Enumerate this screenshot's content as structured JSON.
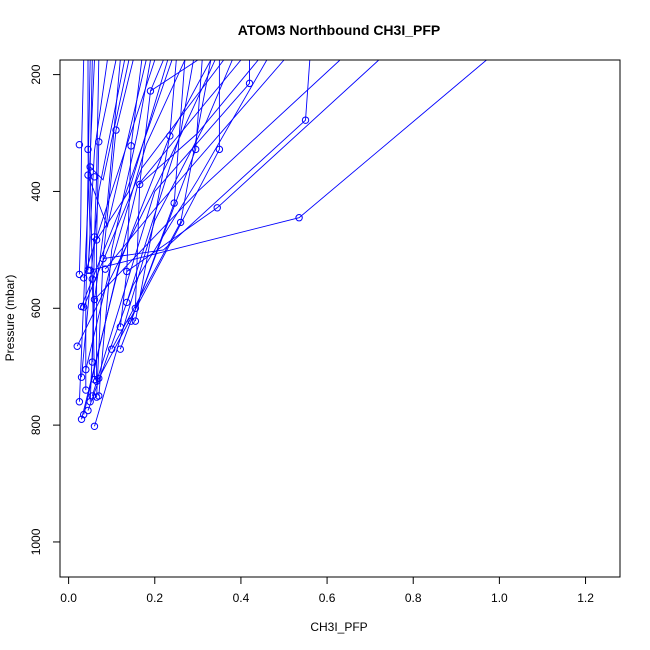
{
  "chart_data": {
    "type": "scatter",
    "title": "ATOM3 Northbound CH3I_PFP",
    "xlabel": "CH3I_PFP",
    "ylabel": "Pressure (mbar)",
    "xlim": [
      -0.02,
      1.28
    ],
    "ylim": [
      1060,
      175
    ],
    "y_reversed": true,
    "grid": false,
    "color": "#0000ff",
    "x_ticks": [
      {
        "value": 0.0,
        "label": "0.0"
      },
      {
        "value": 0.2,
        "label": "0.2"
      },
      {
        "value": 0.4,
        "label": "0.4"
      },
      {
        "value": 0.6,
        "label": "0.6"
      },
      {
        "value": 0.8,
        "label": "0.8"
      },
      {
        "value": 1.0,
        "label": "1.0"
      },
      {
        "value": 1.2,
        "label": "1.2"
      }
    ],
    "y_ticks": [
      {
        "value": 200,
        "label": "200"
      },
      {
        "value": 400,
        "label": "400"
      },
      {
        "value": 600,
        "label": "600"
      },
      {
        "value": 800,
        "label": "800"
      },
      {
        "value": 1000,
        "label": "1000"
      }
    ],
    "points": [
      {
        "x": 0.025,
        "y": 320
      },
      {
        "x": 0.045,
        "y": 328
      },
      {
        "x": 0.07,
        "y": 315
      },
      {
        "x": 0.05,
        "y": 358
      },
      {
        "x": 0.045,
        "y": 372
      },
      {
        "x": 0.06,
        "y": 375
      },
      {
        "x": 0.11,
        "y": 295
      },
      {
        "x": 0.145,
        "y": 322
      },
      {
        "x": 0.19,
        "y": 228
      },
      {
        "x": 0.42,
        "y": 215
      },
      {
        "x": 0.55,
        "y": 278
      },
      {
        "x": 0.345,
        "y": 428
      },
      {
        "x": 0.535,
        "y": 445
      },
      {
        "x": 0.26,
        "y": 453
      },
      {
        "x": 0.35,
        "y": 328
      },
      {
        "x": 0.295,
        "y": 328
      },
      {
        "x": 0.235,
        "y": 305
      },
      {
        "x": 0.245,
        "y": 420
      },
      {
        "x": 0.165,
        "y": 388
      },
      {
        "x": 0.065,
        "y": 483
      },
      {
        "x": 0.06,
        "y": 478
      },
      {
        "x": 0.025,
        "y": 542
      },
      {
        "x": 0.035,
        "y": 548
      },
      {
        "x": 0.045,
        "y": 535
      },
      {
        "x": 0.05,
        "y": 535
      },
      {
        "x": 0.055,
        "y": 550
      },
      {
        "x": 0.085,
        "y": 533
      },
      {
        "x": 0.08,
        "y": 515
      },
      {
        "x": 0.135,
        "y": 537
      },
      {
        "x": 0.03,
        "y": 597
      },
      {
        "x": 0.035,
        "y": 598
      },
      {
        "x": 0.06,
        "y": 585
      },
      {
        "x": 0.135,
        "y": 590
      },
      {
        "x": 0.155,
        "y": 600
      },
      {
        "x": 0.155,
        "y": 622
      },
      {
        "x": 0.145,
        "y": 622
      },
      {
        "x": 0.12,
        "y": 632
      },
      {
        "x": 0.02,
        "y": 665
      },
      {
        "x": 0.1,
        "y": 670
      },
      {
        "x": 0.12,
        "y": 670
      },
      {
        "x": 0.03,
        "y": 718
      },
      {
        "x": 0.04,
        "y": 705
      },
      {
        "x": 0.06,
        "y": 722
      },
      {
        "x": 0.065,
        "y": 725
      },
      {
        "x": 0.04,
        "y": 740
      },
      {
        "x": 0.05,
        "y": 760
      },
      {
        "x": 0.055,
        "y": 750
      },
      {
        "x": 0.065,
        "y": 752
      },
      {
        "x": 0.07,
        "y": 750
      },
      {
        "x": 0.025,
        "y": 760
      },
      {
        "x": 0.045,
        "y": 775
      },
      {
        "x": 0.035,
        "y": 782
      },
      {
        "x": 0.03,
        "y": 790
      },
      {
        "x": 0.06,
        "y": 802
      },
      {
        "x": 0.055,
        "y": 692
      },
      {
        "x": 0.07,
        "y": 720
      }
    ],
    "segments": [
      [
        [
          0.035,
          175
        ],
        [
          0.03,
          330
        ],
        [
          0.028,
          460
        ],
        [
          0.025,
          542
        ]
      ],
      [
        [
          0.045,
          175
        ],
        [
          0.045,
          328
        ],
        [
          0.05,
          480
        ],
        [
          0.045,
          535
        ]
      ],
      [
        [
          0.055,
          175
        ],
        [
          0.05,
          358
        ],
        [
          0.055,
          550
        ],
        [
          0.06,
          722
        ]
      ],
      [
        [
          0.05,
          175
        ],
        [
          0.045,
          372
        ],
        [
          0.04,
          600
        ],
        [
          0.04,
          740
        ]
      ],
      [
        [
          0.07,
          175
        ],
        [
          0.065,
          375
        ],
        [
          0.06,
          478
        ],
        [
          0.055,
          692
        ]
      ],
      [
        [
          0.11,
          175
        ],
        [
          0.07,
          315
        ],
        [
          0.065,
          483
        ],
        [
          0.065,
          725
        ]
      ],
      [
        [
          0.12,
          175
        ],
        [
          0.09,
          420
        ],
        [
          0.06,
          585
        ],
        [
          0.05,
          760
        ]
      ],
      [
        [
          0.15,
          175
        ],
        [
          0.11,
          295
        ],
        [
          0.08,
          515
        ],
        [
          0.065,
          752
        ]
      ],
      [
        [
          0.17,
          175
        ],
        [
          0.145,
          322
        ],
        [
          0.135,
          537
        ],
        [
          0.12,
          632
        ]
      ],
      [
        [
          0.19,
          175
        ],
        [
          0.16,
          300
        ],
        [
          0.1,
          500
        ],
        [
          0.07,
          750
        ]
      ],
      [
        [
          0.22,
          175
        ],
        [
          0.19,
          228
        ],
        [
          0.165,
          388
        ],
        [
          0.155,
          600
        ]
      ],
      [
        [
          0.25,
          175
        ],
        [
          0.235,
          305
        ],
        [
          0.155,
          622
        ]
      ],
      [
        [
          0.27,
          175
        ],
        [
          0.245,
          420
        ],
        [
          0.145,
          622
        ]
      ],
      [
        [
          0.29,
          175
        ],
        [
          0.26,
          300
        ],
        [
          0.135,
          590
        ]
      ],
      [
        [
          0.31,
          175
        ],
        [
          0.295,
          328
        ],
        [
          0.12,
          670
        ]
      ],
      [
        [
          0.33,
          175
        ],
        [
          0.26,
          453
        ],
        [
          0.1,
          670
        ]
      ],
      [
        [
          0.35,
          175
        ],
        [
          0.35,
          328
        ],
        [
          0.25,
          470
        ],
        [
          0.07,
          720
        ]
      ],
      [
        [
          0.38,
          175
        ],
        [
          0.32,
          280
        ],
        [
          0.2,
          450
        ],
        [
          0.06,
          802
        ]
      ],
      [
        [
          0.42,
          175
        ],
        [
          0.42,
          215
        ],
        [
          0.2,
          400
        ],
        [
          0.055,
          750
        ]
      ],
      [
        [
          0.46,
          175
        ],
        [
          0.3,
          380
        ],
        [
          0.15,
          560
        ],
        [
          0.045,
          775
        ]
      ],
      [
        [
          0.5,
          175
        ],
        [
          0.2,
          430
        ],
        [
          0.085,
          533
        ]
      ],
      [
        [
          0.56,
          175
        ],
        [
          0.55,
          278
        ],
        [
          0.22,
          500
        ],
        [
          0.08,
          515
        ]
      ],
      [
        [
          0.63,
          175
        ],
        [
          0.3,
          400
        ],
        [
          0.06,
          585
        ]
      ],
      [
        [
          0.72,
          175
        ],
        [
          0.345,
          428
        ],
        [
          0.135,
          537
        ]
      ],
      [
        [
          0.97,
          175
        ],
        [
          0.535,
          445
        ],
        [
          0.05,
          535
        ]
      ],
      [
        [
          0.3,
          175
        ],
        [
          0.19,
          228
        ]
      ],
      [
        [
          0.36,
          175
        ],
        [
          0.17,
          360
        ],
        [
          0.035,
          598
        ]
      ],
      [
        [
          0.24,
          175
        ],
        [
          0.12,
          430
        ],
        [
          0.03,
          597
        ]
      ],
      [
        [
          0.2,
          175
        ],
        [
          0.1,
          400
        ],
        [
          0.035,
          548
        ]
      ],
      [
        [
          0.13,
          175
        ],
        [
          0.07,
          400
        ],
        [
          0.03,
          718
        ]
      ],
      [
        [
          0.09,
          175
        ],
        [
          0.06,
          330
        ],
        [
          0.045,
          535
        ]
      ],
      [
        [
          0.06,
          175
        ],
        [
          0.04,
          500
        ],
        [
          0.025,
          760
        ]
      ],
      [
        [
          0.4,
          175
        ],
        [
          0.26,
          300
        ],
        [
          0.16,
          390
        ],
        [
          0.035,
          782
        ]
      ],
      [
        [
          0.44,
          175
        ],
        [
          0.3,
          300
        ],
        [
          0.165,
          388
        ]
      ],
      [
        [
          0.33,
          175
        ],
        [
          0.235,
          305
        ],
        [
          0.12,
          520
        ],
        [
          0.03,
          790
        ]
      ],
      [
        [
          0.27,
          175
        ],
        [
          0.18,
          320
        ],
        [
          0.1,
          520
        ],
        [
          0.04,
          705
        ]
      ],
      [
        [
          0.23,
          175
        ],
        [
          0.14,
          400
        ],
        [
          0.065,
          483
        ]
      ],
      [
        [
          0.18,
          175
        ],
        [
          0.09,
          460
        ],
        [
          0.045,
          372
        ]
      ],
      [
        [
          0.14,
          175
        ],
        [
          0.08,
          380
        ],
        [
          0.05,
          358
        ]
      ],
      [
        [
          0.34,
          175
        ],
        [
          0.25,
          320
        ],
        [
          0.02,
          665
        ]
      ]
    ]
  }
}
